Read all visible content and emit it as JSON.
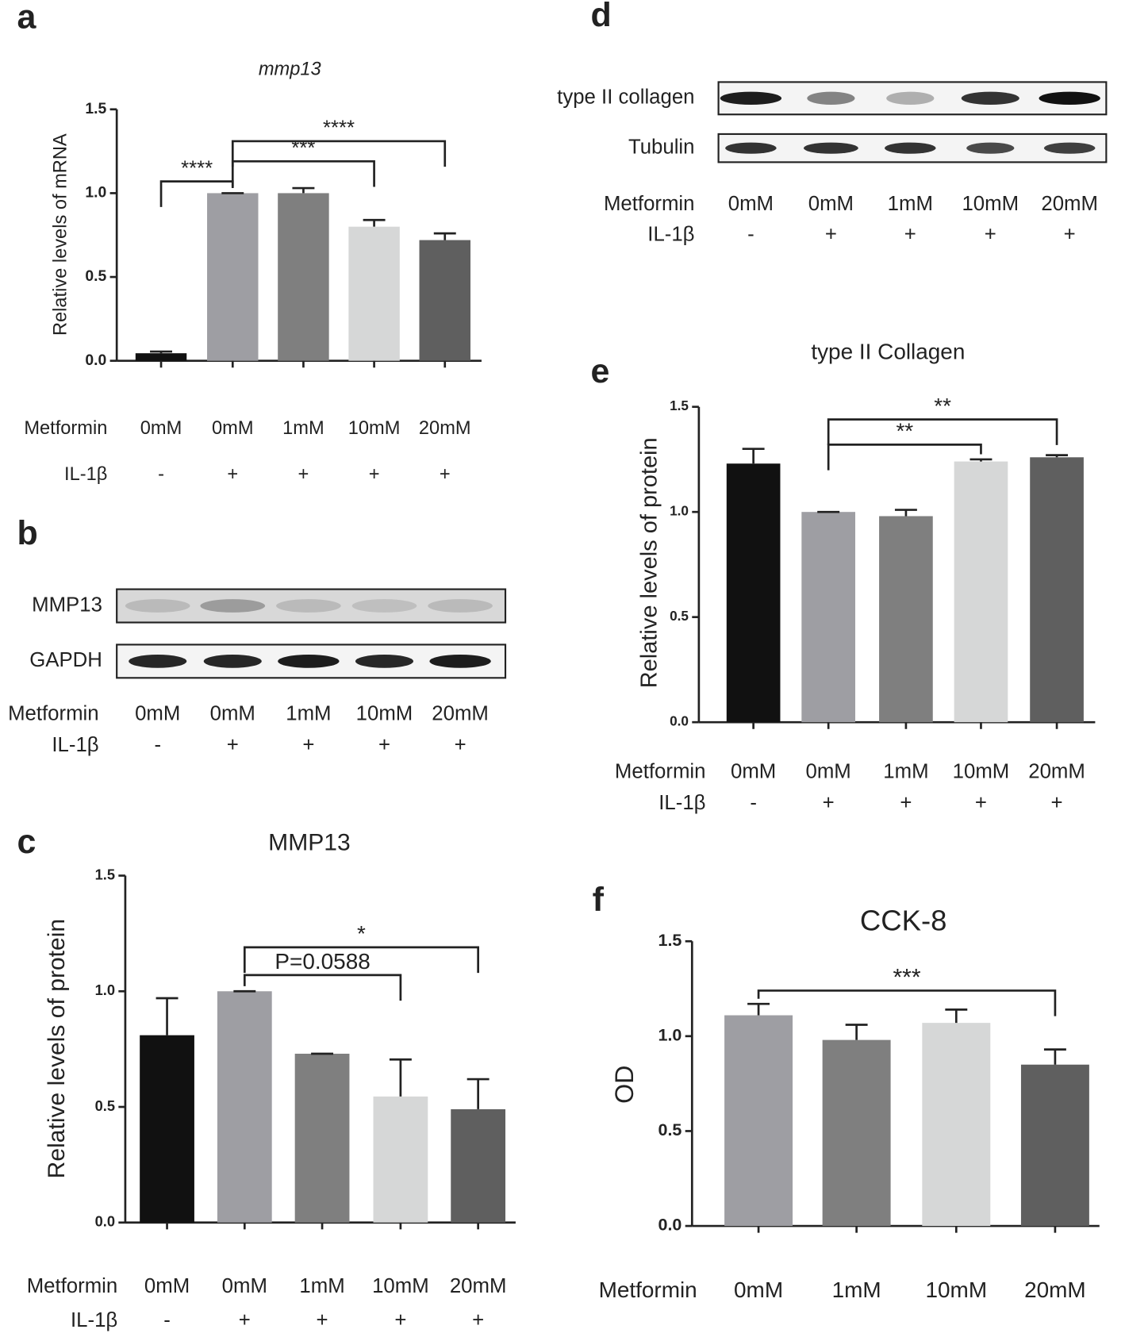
{
  "chart_data": [
    {
      "type": "bar",
      "panel": "a",
      "title": "mmp13",
      "ylabel": "Relative  levels of mRNA",
      "categories": [
        "0mM",
        "0mM",
        "1mM",
        "10mM",
        "20mM"
      ],
      "row_labels": [
        "Metformin",
        "IL-1β"
      ],
      "il1b": [
        "-",
        "+",
        "+",
        "+",
        "+"
      ],
      "values": [
        0.045,
        1.0,
        1.0,
        0.8,
        0.72
      ],
      "errors": [
        0.01,
        0,
        0.03,
        0.04,
        0.04
      ],
      "colors": [
        "#111111",
        "#9e9ea3",
        "#7f7f7f",
        "#d6d7d7",
        "#5f5f5f"
      ],
      "ylim": [
        0,
        1.5
      ],
      "yticks": [
        {
          "value": 0,
          "label": "0.0"
        },
        0.5,
        {
          "value": 1,
          "label": "1.0"
        },
        1.5
      ],
      "annotations": [
        {
          "text": "****",
          "from": 0,
          "to": 1
        },
        {
          "text": "***",
          "from": 1,
          "to": 3
        },
        {
          "text": "****",
          "from": 1,
          "to": 4
        }
      ]
    },
    {
      "type": "bar",
      "panel": "c",
      "title": "MMP13",
      "ylabel": "Relative  levels of protein",
      "categories": [
        "0mM",
        "0mM",
        "1mM",
        "10mM",
        "20mM"
      ],
      "row_labels": [
        "Metformin",
        "IL-1β"
      ],
      "il1b": [
        "-",
        "+",
        "+",
        "+",
        "+"
      ],
      "values": [
        0.81,
        1.0,
        0.73,
        0.545,
        0.49
      ],
      "errors": [
        0.16,
        0,
        0,
        0.16,
        0.13
      ],
      "colors": [
        "#111111",
        "#9e9ea3",
        "#7f7f7f",
        "#d6d7d7",
        "#5f5f5f"
      ],
      "ylim": [
        0,
        1.5
      ],
      "yticks": [
        {
          "value": 0,
          "label": "0.0"
        },
        0.5,
        {
          "value": 1,
          "label": "1.0"
        },
        1.5
      ],
      "annotations": [
        {
          "text": "P=0.0588",
          "from": 1,
          "to": 3
        },
        {
          "text": "*",
          "from": 1,
          "to": 4
        }
      ]
    },
    {
      "type": "bar",
      "panel": "e",
      "title": "type II Collagen",
      "ylabel": "Relative  levels of protein",
      "categories": [
        "0mM",
        "0mM",
        "1mM",
        "10mM",
        "20mM"
      ],
      "row_labels": [
        "Metformin",
        "IL-1β"
      ],
      "il1b": [
        "-",
        "+",
        "+",
        "+",
        "+"
      ],
      "values": [
        1.23,
        1.0,
        0.98,
        1.24,
        1.26
      ],
      "errors": [
        0.07,
        0,
        0.03,
        0.01,
        0.01
      ],
      "colors": [
        "#111111",
        "#9e9ea3",
        "#7f7f7f",
        "#d6d7d7",
        "#5f5f5f"
      ],
      "ylim": [
        0,
        1.5
      ],
      "yticks": [
        {
          "value": 0,
          "label": "0.0"
        },
        0.5,
        {
          "value": 1,
          "label": "1.0"
        },
        1.5
      ],
      "annotations": [
        {
          "text": "**",
          "from": 1,
          "to": 3
        },
        {
          "text": "**",
          "from": 1,
          "to": 4
        }
      ]
    },
    {
      "type": "bar",
      "panel": "f",
      "title": "CCK-8",
      "ylabel": "OD",
      "categories": [
        "0mM",
        "1mM",
        "10mM",
        "20mM"
      ],
      "row_labels": [
        "Metformin"
      ],
      "values": [
        1.11,
        0.98,
        1.07,
        0.85
      ],
      "errors": [
        0.06,
        0.08,
        0.07,
        0.08
      ],
      "colors": [
        "#9e9ea3",
        "#7f7f7f",
        "#d6d7d7",
        "#5f5f5f"
      ],
      "ylim": [
        0,
        1.5
      ],
      "yticks": [
        {
          "value": 0,
          "label": "0.0"
        },
        0.5,
        {
          "value": 1,
          "label": "1.0"
        },
        1.5
      ],
      "annotations": [
        {
          "text": "***",
          "from": 0,
          "to": 3
        }
      ]
    }
  ],
  "blots": [
    {
      "panel": "b",
      "rows": [
        "MMP13",
        "GAPDH"
      ],
      "row_labels": [
        "Metformin",
        "IL-1β"
      ],
      "metformin": [
        "0mM",
        "0mM",
        "1mM",
        "10mM",
        "20mM"
      ],
      "il1b": [
        "-",
        "+",
        "+",
        "+",
        "+"
      ]
    },
    {
      "panel": "d",
      "rows": [
        "type II collagen",
        "Tubulin"
      ],
      "row_labels": [
        "Metformin",
        "IL-1β"
      ],
      "metformin": [
        "0mM",
        "0mM",
        "1mM",
        "10mM",
        "20mM"
      ],
      "il1b": [
        "-",
        "+",
        "+",
        "+",
        "+"
      ]
    }
  ]
}
